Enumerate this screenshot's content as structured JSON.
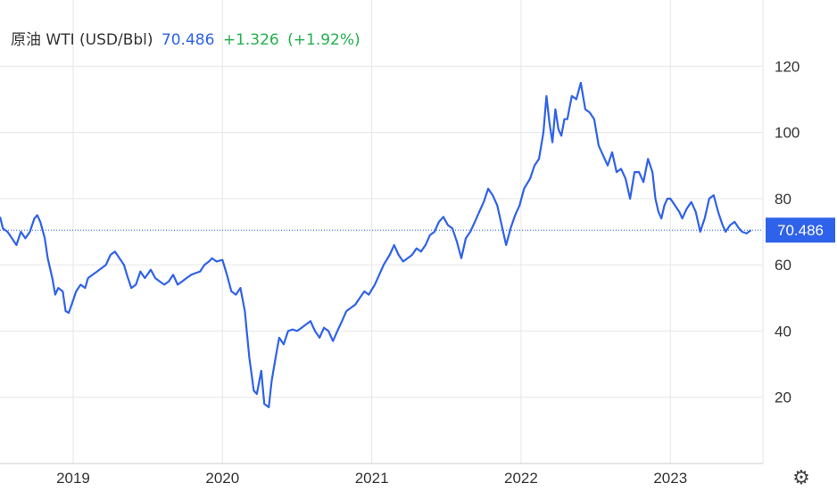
{
  "header": {
    "instrument": "原油 WTI (USD/Bbl)",
    "price": "70.486",
    "change": "+1.326",
    "change_pct": "(+1.92%)"
  },
  "colors": {
    "line": "#2f62ea",
    "price_text": "#2f62ea",
    "change_text": "#22b14c",
    "label_bg": "#2f62ea",
    "grid": "#e6e6e6",
    "axis_text": "#333333",
    "current_line": "#2f62ea"
  },
  "settings_icon": "gear-icon",
  "chart_data": {
    "type": "line",
    "title": "原油 WTI (USD/Bbl)",
    "xlabel": "",
    "ylabel": "",
    "xlim": [
      2018.51,
      2023.62
    ],
    "ylim": [
      0,
      140
    ],
    "yticks": [
      20,
      40,
      60,
      80,
      100,
      120
    ],
    "xticks": [
      {
        "value": 2019,
        "label": "2019"
      },
      {
        "value": 2020,
        "label": "2020"
      },
      {
        "value": 2021,
        "label": "2021"
      },
      {
        "value": 2022,
        "label": "2022"
      },
      {
        "value": 2023,
        "label": "2023"
      }
    ],
    "grid": true,
    "legend": "none",
    "current_value": 70.486,
    "current_label": "70.486",
    "series": [
      {
        "values": [
          [
            2018.51,
            74.5
          ],
          [
            2018.53,
            71.0
          ],
          [
            2018.56,
            70.0
          ],
          [
            2018.59,
            68.0
          ],
          [
            2018.62,
            66.0
          ],
          [
            2018.65,
            70.0
          ],
          [
            2018.68,
            68.0
          ],
          [
            2018.71,
            70.0
          ],
          [
            2018.74,
            74.0
          ],
          [
            2018.76,
            75.0
          ],
          [
            2018.78,
            73.0
          ],
          [
            2018.81,
            68.0
          ],
          [
            2018.83,
            62.0
          ],
          [
            2018.86,
            56.0
          ],
          [
            2018.88,
            51.0
          ],
          [
            2018.9,
            53.0
          ],
          [
            2018.93,
            52.0
          ],
          [
            2018.95,
            46.0
          ],
          [
            2018.97,
            45.5
          ],
          [
            2018.99,
            48.0
          ],
          [
            2019.02,
            52.0
          ],
          [
            2019.05,
            54.0
          ],
          [
            2019.08,
            53.0
          ],
          [
            2019.1,
            56.0
          ],
          [
            2019.13,
            57.0
          ],
          [
            2019.16,
            58.0
          ],
          [
            2019.19,
            59.0
          ],
          [
            2019.22,
            60.0
          ],
          [
            2019.25,
            63.0
          ],
          [
            2019.28,
            64.0
          ],
          [
            2019.31,
            62.0
          ],
          [
            2019.34,
            60.0
          ],
          [
            2019.36,
            57.0
          ],
          [
            2019.39,
            53.0
          ],
          [
            2019.42,
            54.0
          ],
          [
            2019.45,
            58.0
          ],
          [
            2019.48,
            56.0
          ],
          [
            2019.52,
            58.5
          ],
          [
            2019.55,
            56.0
          ],
          [
            2019.58,
            55.0
          ],
          [
            2019.61,
            54.0
          ],
          [
            2019.64,
            55.0
          ],
          [
            2019.67,
            57.0
          ],
          [
            2019.7,
            54.0
          ],
          [
            2019.73,
            55.0
          ],
          [
            2019.76,
            56.0
          ],
          [
            2019.79,
            57.0
          ],
          [
            2019.82,
            57.5
          ],
          [
            2019.85,
            58.0
          ],
          [
            2019.88,
            60.0
          ],
          [
            2019.91,
            61.0
          ],
          [
            2019.93,
            62.0
          ],
          [
            2019.96,
            61.0
          ],
          [
            2020.0,
            61.5
          ],
          [
            2020.03,
            57.0
          ],
          [
            2020.06,
            52.0
          ],
          [
            2020.09,
            51.0
          ],
          [
            2020.12,
            53.0
          ],
          [
            2020.15,
            46.0
          ],
          [
            2020.18,
            32.0
          ],
          [
            2020.21,
            22.0
          ],
          [
            2020.23,
            21.0
          ],
          [
            2020.26,
            28.0
          ],
          [
            2020.28,
            18.0
          ],
          [
            2020.31,
            17.0
          ],
          [
            2020.33,
            25.0
          ],
          [
            2020.36,
            33.0
          ],
          [
            2020.38,
            38.0
          ],
          [
            2020.41,
            36.0
          ],
          [
            2020.44,
            40.0
          ],
          [
            2020.47,
            40.5
          ],
          [
            2020.5,
            40.0
          ],
          [
            2020.53,
            41.0
          ],
          [
            2020.56,
            42.0
          ],
          [
            2020.59,
            43.0
          ],
          [
            2020.62,
            40.0
          ],
          [
            2020.65,
            38.0
          ],
          [
            2020.68,
            41.0
          ],
          [
            2020.71,
            40.0
          ],
          [
            2020.74,
            37.0
          ],
          [
            2020.77,
            40.0
          ],
          [
            2020.8,
            43.0
          ],
          [
            2020.83,
            46.0
          ],
          [
            2020.86,
            47.0
          ],
          [
            2020.89,
            48.0
          ],
          [
            2020.92,
            50.0
          ],
          [
            2020.95,
            52.0
          ],
          [
            2020.98,
            51.0
          ],
          [
            2021.02,
            54.0
          ],
          [
            2021.05,
            57.0
          ],
          [
            2021.08,
            60.0
          ],
          [
            2021.12,
            63.0
          ],
          [
            2021.15,
            66.0
          ],
          [
            2021.18,
            63.0
          ],
          [
            2021.21,
            61.0
          ],
          [
            2021.24,
            62.0
          ],
          [
            2021.27,
            63.0
          ],
          [
            2021.3,
            65.0
          ],
          [
            2021.33,
            64.0
          ],
          [
            2021.36,
            66.0
          ],
          [
            2021.39,
            69.0
          ],
          [
            2021.42,
            70.0
          ],
          [
            2021.45,
            73.0
          ],
          [
            2021.48,
            74.5
          ],
          [
            2021.51,
            72.0
          ],
          [
            2021.54,
            71.0
          ],
          [
            2021.57,
            67.0
          ],
          [
            2021.6,
            62.0
          ],
          [
            2021.63,
            68.0
          ],
          [
            2021.66,
            70.0
          ],
          [
            2021.69,
            73.0
          ],
          [
            2021.72,
            76.0
          ],
          [
            2021.75,
            79.0
          ],
          [
            2021.78,
            83.0
          ],
          [
            2021.81,
            81.0
          ],
          [
            2021.84,
            78.0
          ],
          [
            2021.87,
            72.0
          ],
          [
            2021.9,
            66.0
          ],
          [
            2021.93,
            71.0
          ],
          [
            2021.96,
            75.0
          ],
          [
            2021.99,
            78.0
          ],
          [
            2022.02,
            83.0
          ],
          [
            2022.06,
            86.0
          ],
          [
            2022.09,
            90.0
          ],
          [
            2022.12,
            92.0
          ],
          [
            2022.15,
            100.0
          ],
          [
            2022.17,
            111.0
          ],
          [
            2022.19,
            103.0
          ],
          [
            2022.21,
            97.0
          ],
          [
            2022.23,
            107.0
          ],
          [
            2022.25,
            101.0
          ],
          [
            2022.27,
            99.0
          ],
          [
            2022.29,
            104.0
          ],
          [
            2022.31,
            104.0
          ],
          [
            2022.34,
            111.0
          ],
          [
            2022.37,
            110.0
          ],
          [
            2022.4,
            115.0
          ],
          [
            2022.43,
            107.0
          ],
          [
            2022.46,
            106.0
          ],
          [
            2022.49,
            104.0
          ],
          [
            2022.52,
            96.0
          ],
          [
            2022.55,
            93.0
          ],
          [
            2022.58,
            90.0
          ],
          [
            2022.61,
            94.0
          ],
          [
            2022.64,
            88.0
          ],
          [
            2022.67,
            89.0
          ],
          [
            2022.7,
            86.0
          ],
          [
            2022.73,
            80.0
          ],
          [
            2022.76,
            88.0
          ],
          [
            2022.79,
            88.0
          ],
          [
            2022.82,
            85.0
          ],
          [
            2022.85,
            92.0
          ],
          [
            2022.88,
            88.0
          ],
          [
            2022.9,
            80.0
          ],
          [
            2022.92,
            76.0
          ],
          [
            2022.94,
            74.0
          ],
          [
            2022.96,
            78.0
          ],
          [
            2022.98,
            80.0
          ],
          [
            2023.0,
            80.0
          ],
          [
            2023.03,
            78.0
          ],
          [
            2023.06,
            76.0
          ],
          [
            2023.08,
            74.0
          ],
          [
            2023.11,
            77.0
          ],
          [
            2023.14,
            79.0
          ],
          [
            2023.17,
            76.0
          ],
          [
            2023.2,
            70.0
          ],
          [
            2023.23,
            74.0
          ],
          [
            2023.26,
            80.0
          ],
          [
            2023.29,
            81.0
          ],
          [
            2023.32,
            76.0
          ],
          [
            2023.35,
            72.0
          ],
          [
            2023.37,
            70.0
          ],
          [
            2023.4,
            72.0
          ],
          [
            2023.43,
            73.0
          ],
          [
            2023.46,
            71.0
          ],
          [
            2023.48,
            70.0
          ],
          [
            2023.51,
            69.5
          ],
          [
            2023.54,
            70.5
          ]
        ]
      }
    ]
  }
}
